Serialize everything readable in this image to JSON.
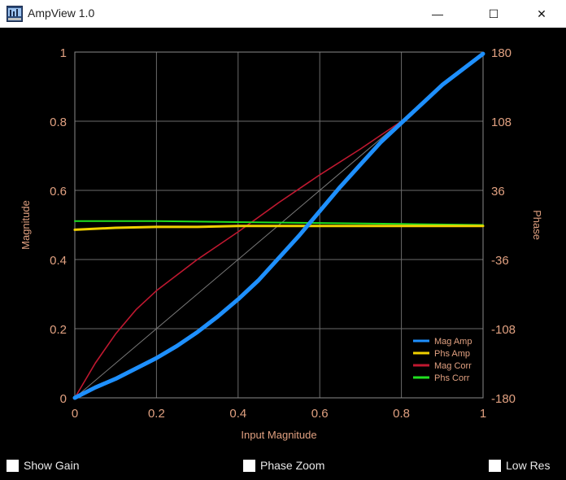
{
  "window": {
    "title": "AmpView 1.0",
    "controls": {
      "minimize": "—",
      "maximize": "☐",
      "close": "✕"
    }
  },
  "checkboxes": [
    {
      "label": "Show Gain",
      "checked": false
    },
    {
      "label": "Phase Zoom",
      "checked": false
    },
    {
      "label": "Low Res",
      "checked": false
    }
  ],
  "chart_data": {
    "type": "line",
    "xlabel": "Input Magnitude",
    "ylabel": "Magnitude",
    "y2label": "Phase",
    "xlim": [
      0,
      1
    ],
    "ylim": [
      0,
      1
    ],
    "y2lim": [
      -180,
      180
    ],
    "x_ticks": [
      "0",
      "0.2",
      "0.4",
      "0.6",
      "0.8",
      "1"
    ],
    "y_ticks": [
      "0",
      "0.2",
      "0.4",
      "0.6",
      "0.8",
      "1"
    ],
    "y2_ticks": [
      "-180",
      "-108",
      "-36",
      "36",
      "108",
      "180"
    ],
    "grid": true,
    "legend_position": "bottom-right",
    "colors": {
      "axis_text": "#e0a080",
      "grid": "#6b6b6b",
      "frame": "#8a8a8a"
    },
    "series": [
      {
        "name": "Mag Amp",
        "color": "#1e90ff",
        "axis": "left",
        "x": [
          0,
          0.05,
          0.1,
          0.15,
          0.2,
          0.25,
          0.3,
          0.35,
          0.4,
          0.45,
          0.5,
          0.55,
          0.6,
          0.65,
          0.7,
          0.75,
          0.8,
          0.85,
          0.9,
          0.95,
          1.0
        ],
        "y": [
          0,
          0.03,
          0.055,
          0.085,
          0.115,
          0.15,
          0.19,
          0.235,
          0.285,
          0.34,
          0.405,
          0.47,
          0.54,
          0.61,
          0.675,
          0.74,
          0.795,
          0.85,
          0.905,
          0.95,
          0.995
        ]
      },
      {
        "name": "Phs Amp",
        "color": "#f0d000",
        "axis": "right",
        "x": [
          0,
          0.1,
          0.2,
          0.3,
          0.4,
          0.5,
          0.6,
          0.7,
          0.8,
          0.9,
          1.0
        ],
        "y": [
          -5,
          -3,
          -2,
          -2,
          -1,
          -1,
          -1,
          -1,
          -1,
          -1,
          -1
        ]
      },
      {
        "name": "Mag Corr",
        "color": "#c01830",
        "axis": "left",
        "x": [
          0,
          0.05,
          0.1,
          0.15,
          0.2,
          0.3,
          0.4,
          0.5,
          0.6,
          0.7,
          0.8
        ],
        "y": [
          0,
          0.1,
          0.185,
          0.255,
          0.31,
          0.4,
          0.48,
          0.565,
          0.645,
          0.72,
          0.8
        ]
      },
      {
        "name": "Phs Corr",
        "color": "#20e020",
        "axis": "right",
        "x": [
          0,
          0.2,
          0.4,
          0.6,
          0.8,
          1.0
        ],
        "y": [
          4,
          4,
          3,
          2,
          1,
          0
        ]
      }
    ],
    "diagonal_reference": {
      "x": [
        0,
        1
      ],
      "y": [
        0,
        1
      ],
      "color": "#7a7a7a"
    }
  }
}
